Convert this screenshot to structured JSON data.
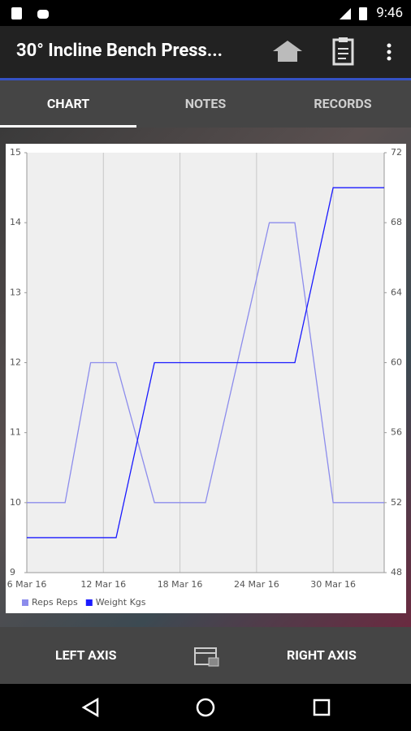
{
  "status_bar": {
    "time": "9:46"
  },
  "app_bar": {
    "title": "30° Incline Bench Press..."
  },
  "tabs": [
    "CHART",
    "NOTES",
    "RECORDS"
  ],
  "chart_data": {
    "type": "line",
    "x": [
      "2016-03-06",
      "2016-03-09",
      "2016-03-11",
      "2016-03-13",
      "2016-03-16",
      "2016-03-20",
      "2016-03-25",
      "2016-03-27",
      "2016-03-30",
      "2016-04-03"
    ],
    "xlim": [
      "2016-03-06",
      "2016-04-03"
    ],
    "xticks": [
      {
        "value": "2016-03-06",
        "label": "6 Mar 16"
      },
      {
        "value": "2016-03-12",
        "label": "12 Mar 16"
      },
      {
        "value": "2016-03-18",
        "label": "18 Mar 16"
      },
      {
        "value": "2016-03-24",
        "label": "24 Mar 16"
      },
      {
        "value": "2016-03-30",
        "label": "30 Mar 16"
      }
    ],
    "series": [
      {
        "name": "Reps Reps",
        "color": "#8c8cec",
        "values": [
          10,
          10,
          12,
          12,
          10,
          10,
          14,
          14,
          10,
          10
        ]
      },
      {
        "name": "Weight Kgs",
        "color": "#1a1aff",
        "axis": "y2",
        "values": [
          50,
          50,
          50,
          50,
          60,
          60,
          60,
          60,
          70,
          70
        ]
      }
    ],
    "ylim": [
      9,
      15
    ],
    "yticks": [
      9,
      10,
      11,
      12,
      13,
      14,
      15
    ],
    "y2lim": [
      48,
      72
    ],
    "y2ticks": [
      48,
      52,
      56,
      60,
      64,
      68,
      72
    ],
    "grid": true,
    "legend": "bottom-left"
  },
  "bottom_bar": {
    "left": "LEFT AXIS",
    "right": "RIGHT AXIS"
  }
}
